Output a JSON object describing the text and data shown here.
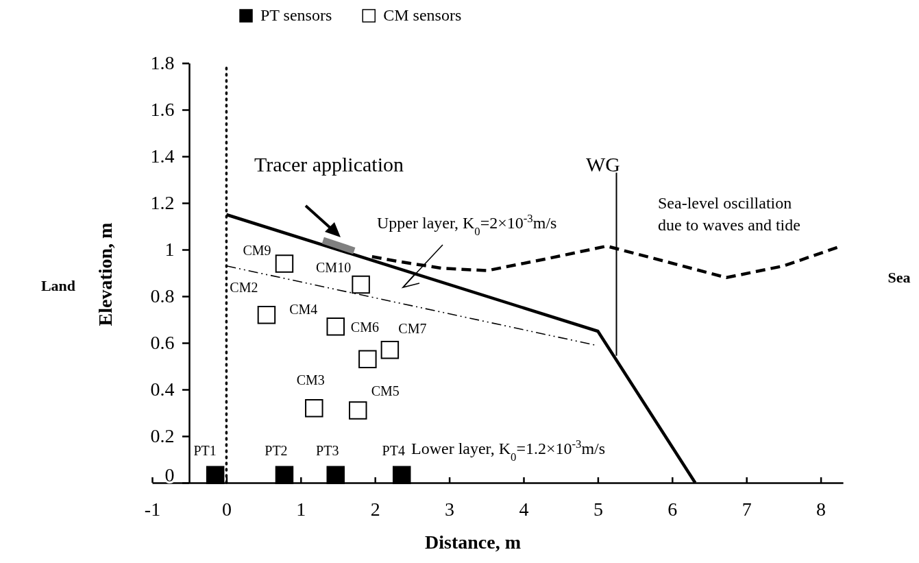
{
  "chart_data": {
    "type": "scatter",
    "xlabel": "Distance, m",
    "ylabel": "Elevation, m",
    "xlim": [
      -1,
      8.3
    ],
    "ylim": [
      0,
      1.8
    ],
    "xticks": [
      -1,
      0,
      1,
      2,
      3,
      4,
      5,
      6,
      7,
      8
    ],
    "yticks": [
      {
        "value": 0,
        "label": "0"
      },
      0.2,
      0.4,
      0.6,
      0.8,
      {
        "value": 1,
        "label": "1"
      },
      1.2,
      1.4,
      1.6,
      1.8
    ],
    "grid": false,
    "legend": "top",
    "marker": "square",
    "series": [
      {
        "name": "PT sensors",
        "color": "#000000",
        "x": [
          -0.15,
          0.78,
          1.47,
          2.36
        ],
        "values": [
          0.03,
          0.03,
          0.03,
          0.03
        ],
        "value_labels": [
          "PT1",
          "PT2",
          "PT3",
          "PT4"
        ]
      },
      {
        "name": "CM sensors",
        "color": "#ffffff",
        "x": [
          0.78,
          1.81,
          0.54,
          1.47,
          1.9,
          2.2,
          1.18,
          1.77
        ],
        "values": [
          0.94,
          0.85,
          0.72,
          0.67,
          0.53,
          0.57,
          0.32,
          0.31
        ],
        "value_labels": [
          "CM9",
          "CM10",
          "CM2",
          "CM4",
          "CM6",
          "CM7",
          "CM3",
          "CM5"
        ]
      },
      {
        "type": "line",
        "color": "#000000",
        "line_style": "solid",
        "marker": "none",
        "x": [
          0,
          5,
          6.31
        ],
        "values": [
          1.15,
          0.65,
          0
        ]
      },
      {
        "type": "line",
        "color": "#000000",
        "line_style": "dashed",
        "marker": "none",
        "x": [
          0,
          4.97
        ],
        "values": [
          0.93,
          0.59
        ]
      },
      {
        "type": "line",
        "color": "#000000",
        "line_style": "dashed",
        "marker": "none",
        "x": [
          1.96,
          2.3,
          2.9,
          3.51,
          4.3,
          5.12,
          5.9,
          6.73,
          7.5,
          8.23
        ],
        "values": [
          0.97,
          0.95,
          0.92,
          0.91,
          0.96,
          1.015,
          0.95,
          0.88,
          0.93,
          1.01
        ]
      },
      {
        "type": "line",
        "color": "#000000",
        "line_style": "solid",
        "marker": "none",
        "x": [
          5.25,
          5.25
        ],
        "values": [
          0.545,
          1.33
        ]
      },
      {
        "type": "line",
        "color": "#808080",
        "line_style": "solid",
        "marker": "none",
        "x": [
          1.3,
          1.72
        ],
        "values": [
          1.04,
          0.995
        ]
      }
    ],
    "ref_lines": [
      {
        "axis": "x",
        "value": 0,
        "line_style": "dotted",
        "color": "#000000"
      }
    ],
    "annotations": [
      "Tracer application",
      "WG",
      "Upper layer, K$_{0}$=2×10$^{-3}$m/s",
      "Sea-level oscillation due to waves and tide",
      "Lower layer, K$_{0}$=1.2×10$^{-3}$m/s",
      "Land",
      "Sea"
    ]
  }
}
